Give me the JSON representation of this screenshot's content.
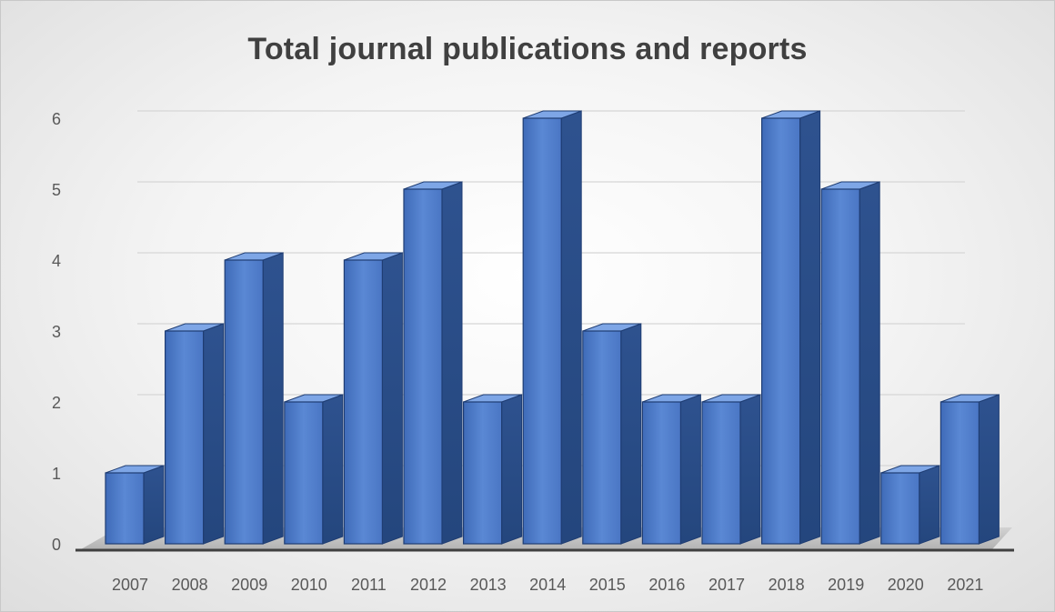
{
  "chart_data": {
    "type": "bar",
    "title": "Total journal publications and reports",
    "categories": [
      "2007",
      "2008",
      "2009",
      "2010",
      "2011",
      "2012",
      "2013",
      "2014",
      "2015",
      "2016",
      "2017",
      "2018",
      "2019",
      "2020",
      "2021"
    ],
    "values": [
      1,
      3,
      4,
      2,
      4,
      5,
      2,
      6,
      3,
      2,
      2,
      6,
      5,
      1,
      2
    ],
    "ylim": [
      0,
      6
    ],
    "yticks": [
      "0",
      "1",
      "2",
      "3",
      "4",
      "5",
      "6"
    ],
    "xlabel": "",
    "ylabel": "",
    "grid": true,
    "legend": "none",
    "style": "3d-column",
    "colors": {
      "bar_front": "#4a78c8",
      "bar_side": "#2c4f8f",
      "bar_top": "#7ea6e6",
      "bar_edge": "#1f3d73",
      "axis": "#404040",
      "grid": "#d6d6d6",
      "floor": "#bdbdbd"
    }
  }
}
